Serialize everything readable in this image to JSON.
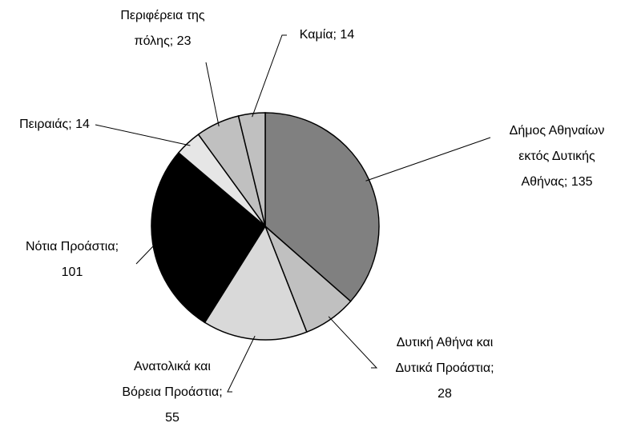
{
  "chart_data": {
    "type": "pie",
    "categories": [
      "Δήμος Αθηναίων εκτός Δυτικής Αθήνας",
      "Δυτική Αθήνα και Δυτικά Προάστια",
      "Ανατολικά και Βόρεια Προάστια",
      "Νότια Προάστια",
      "Πειραιάς",
      "Περιφέρεια της πόλης",
      "Καμία"
    ],
    "values": [
      135,
      28,
      55,
      101,
      14,
      23,
      14
    ],
    "colors": [
      "#808080",
      "#c0c0c0",
      "#d9d9d9",
      "#000000",
      "#e6e6e6",
      "#c0c0c0",
      "#c0c0c0"
    ],
    "label_separator": "; "
  }
}
